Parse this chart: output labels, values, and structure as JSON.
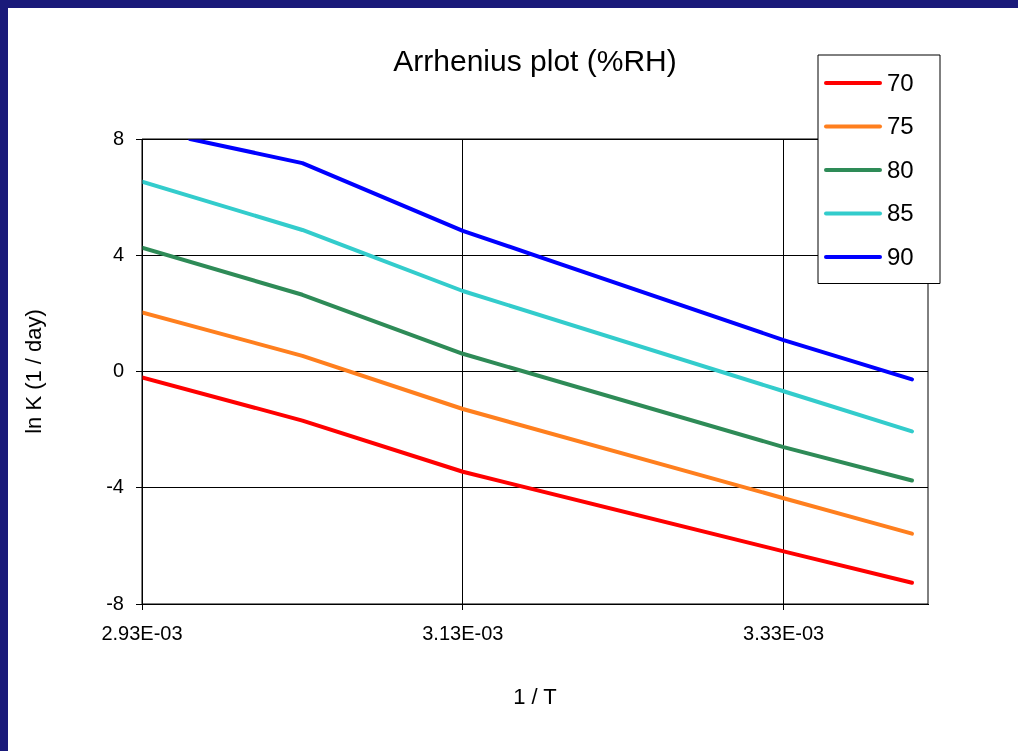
{
  "chart_data": {
    "type": "line",
    "title": "Arrhenius plot (%RH)",
    "xlabel": "1 / T",
    "ylabel": "ln K (1 / day)",
    "xlim": [
      0.00293,
      0.00342
    ],
    "xticks": [
      {
        "value": 0.00293,
        "label": "2.93E-03"
      },
      {
        "value": 0.00313,
        "label": "3.13E-03"
      },
      {
        "value": 0.00333,
        "label": "3.33E-03"
      }
    ],
    "ylim": [
      -8,
      8
    ],
    "yticks": [
      -8,
      -4,
      0,
      4,
      8
    ],
    "grid": true,
    "legend": "top right",
    "marker": "none",
    "line_style": "solid",
    "series": [
      {
        "name": "70",
        "color": "#ff0000",
        "x": [
          0.00293,
          0.00303,
          0.00313,
          0.00333,
          0.00341
        ],
        "values": [
          -0.2,
          -1.69,
          -3.45,
          -6.19,
          -7.27
        ]
      },
      {
        "name": "75",
        "color": "#ff7f1e",
        "x": [
          0.00293,
          0.00303,
          0.00313,
          0.00333,
          0.00341
        ],
        "values": [
          2.03,
          0.54,
          -1.29,
          -4.36,
          -5.58
        ]
      },
      {
        "name": "80",
        "color": "#2e8b57",
        "x": [
          0.00293,
          0.00303,
          0.00313,
          0.00333,
          0.00341
        ],
        "values": [
          4.26,
          2.64,
          0.61,
          -2.6,
          -3.75
        ]
      },
      {
        "name": "85",
        "color": "#33cccc",
        "x": [
          0.00293,
          0.00303,
          0.00313,
          0.00333,
          0.00341
        ],
        "values": [
          6.53,
          4.87,
          2.77,
          -0.68,
          -2.06
        ]
      },
      {
        "name": "90",
        "color": "#0000ff",
        "x": [
          0.00296,
          0.00303,
          0.00313,
          0.00333,
          0.00341
        ],
        "values": [
          8,
          7.17,
          4.84,
          1.08,
          -0.27
        ]
      }
    ]
  }
}
